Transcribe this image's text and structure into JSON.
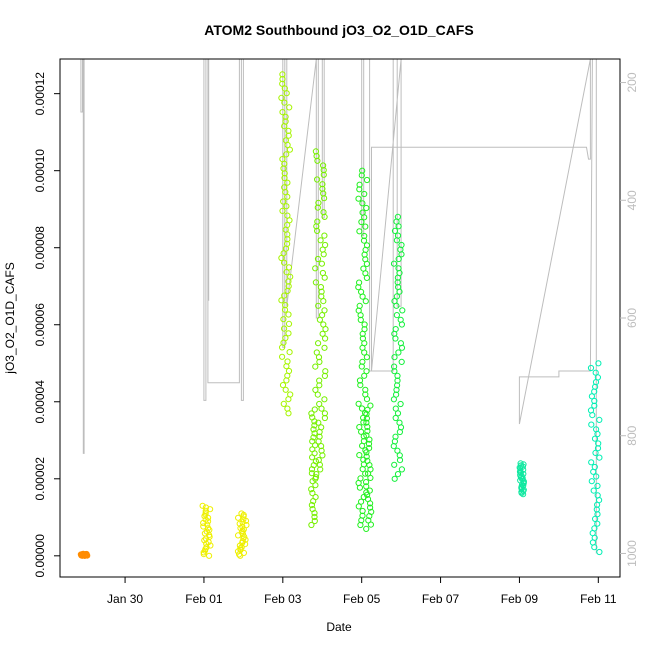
{
  "chart_data": {
    "type": "scatter",
    "title": "ATOM2 Southbound jO3_O2_O1D_CAFS",
    "xlabel": "Date",
    "ylabel": "jO3_O2_O1D_CAFS",
    "x_ticks": [
      "Jan 30",
      "Feb 01",
      "Feb 03",
      "Feb 05",
      "Feb 07",
      "Feb 09",
      "Feb 11"
    ],
    "x_tick_days": [
      30,
      32,
      34,
      36,
      38,
      40,
      42
    ],
    "xlim_days": [
      28.35,
      42.55
    ],
    "y_ticks": [
      "0.00000",
      "0.00002",
      "0.00004",
      "0.00006",
      "0.00008",
      "0.00010",
      "0.00012"
    ],
    "y_tick_values": [
      0,
      2e-05,
      4e-05,
      6e-05,
      8e-05,
      0.0001,
      0.00012
    ],
    "ylim": [
      -5.5e-06,
      0.000129
    ],
    "right_axis": {
      "ticks": [
        "200",
        "400",
        "600",
        "800",
        "1000"
      ],
      "tick_values": [
        200,
        400,
        600,
        800,
        1000
      ],
      "lim": [
        1040,
        160
      ],
      "color": "#bdbdbd"
    },
    "series": [
      {
        "color": "#ff8c00",
        "clusters": [
          {
            "x": [
              28.85,
              29.05
            ],
            "y": [
              0.0,
              5e-07
            ]
          }
        ]
      },
      {
        "color": "#eef000",
        "clusters": [
          {
            "x": [
              31.95,
              32.18
            ],
            "y": [
              0.0,
              1.3e-05
            ]
          },
          {
            "x": [
              32.85,
              33.1
            ],
            "y": [
              0.0,
              1.1e-05
            ]
          }
        ]
      },
      {
        "color": "#a6f500",
        "clusters": [
          {
            "x": [
              33.95,
              34.2
            ],
            "y": [
              3.7e-05,
              0.000125
            ]
          }
        ]
      },
      {
        "color": "#77f000",
        "clusters": [
          {
            "x": [
              34.7,
              34.85
            ],
            "y": [
              8e-06,
              3.8e-05
            ]
          },
          {
            "x": [
              34.8,
              35.1
            ],
            "y": [
              2e-05,
              0.000105
            ]
          }
        ]
      },
      {
        "color": "#22f020",
        "clusters": [
          {
            "x": [
              35.9,
              36.15
            ],
            "y": [
              8e-06,
              0.0001
            ]
          },
          {
            "x": [
              36.1,
              36.25
            ],
            "y": [
              7e-06,
              3.9e-05
            ]
          }
        ]
      },
      {
        "color": "#14f03c",
        "clusters": [
          {
            "x": [
              36.8,
              37.05
            ],
            "y": [
              2e-05,
              8.8e-05
            ]
          }
        ]
      },
      {
        "color": "#10e8a0",
        "clusters": [
          {
            "x": [
              40.0,
              40.12
            ],
            "y": [
              1.6e-05,
              2.4e-05
            ]
          }
        ]
      },
      {
        "color": "#00f0b4",
        "clusters": [
          {
            "x": [
              41.8,
              42.05
            ],
            "y": [
              1e-06,
              5e-05
            ]
          }
        ]
      }
    ],
    "altitude_trace": {
      "color": "#bdbdbd",
      "points": [
        [
          28.88,
          160
        ],
        [
          28.88,
          250
        ],
        [
          28.92,
          250
        ],
        [
          28.92,
          160
        ],
        [
          28.94,
          160
        ],
        [
          28.94,
          830
        ],
        [
          28.96,
          830
        ],
        [
          28.96,
          160
        ],
        [
          32.0,
          160
        ],
        [
          32.0,
          740
        ],
        [
          32.05,
          740
        ],
        [
          32.05,
          160
        ],
        [
          32.1,
          160
        ],
        [
          32.1,
          570
        ],
        [
          32.12,
          570
        ],
        [
          32.12,
          160
        ],
        [
          32.1,
          160
        ],
        [
          32.1,
          710
        ],
        [
          32.9,
          710
        ],
        [
          32.9,
          160
        ],
        [
          32.95,
          160
        ],
        [
          32.95,
          740
        ],
        [
          33.0,
          740
        ],
        [
          33.0,
          160
        ],
        [
          34.0,
          160
        ],
        [
          34.0,
          650
        ],
        [
          34.05,
          650
        ],
        [
          34.05,
          160
        ],
        [
          34.1,
          160
        ],
        [
          34.1,
          580
        ],
        [
          34.85,
          160
        ],
        [
          34.85,
          600
        ],
        [
          34.9,
          600
        ],
        [
          34.9,
          160
        ],
        [
          35.0,
          160
        ],
        [
          35.0,
          430
        ],
        [
          35.05,
          430
        ],
        [
          35.05,
          160
        ],
        [
          36.0,
          160
        ],
        [
          36.0,
          460
        ],
        [
          36.05,
          460
        ],
        [
          36.05,
          160
        ],
        [
          36.2,
          160
        ],
        [
          36.2,
          690
        ],
        [
          36.8,
          690
        ],
        [
          36.8,
          160
        ],
        [
          36.9,
          160
        ],
        [
          36.9,
          580
        ],
        [
          37.0,
          580
        ],
        [
          37.0,
          160
        ],
        [
          36.25,
          690
        ],
        [
          36.25,
          310
        ],
        [
          41.7,
          310
        ],
        [
          41.75,
          330
        ],
        [
          41.8,
          330
        ],
        [
          41.8,
          160
        ],
        [
          40.0,
          780
        ],
        [
          40.0,
          700
        ],
        [
          41.0,
          700
        ],
        [
          41.0,
          690
        ],
        [
          41.8,
          690
        ],
        [
          41.85,
          160
        ],
        [
          41.95,
          160
        ],
        [
          41.95,
          1000
        ]
      ]
    }
  }
}
